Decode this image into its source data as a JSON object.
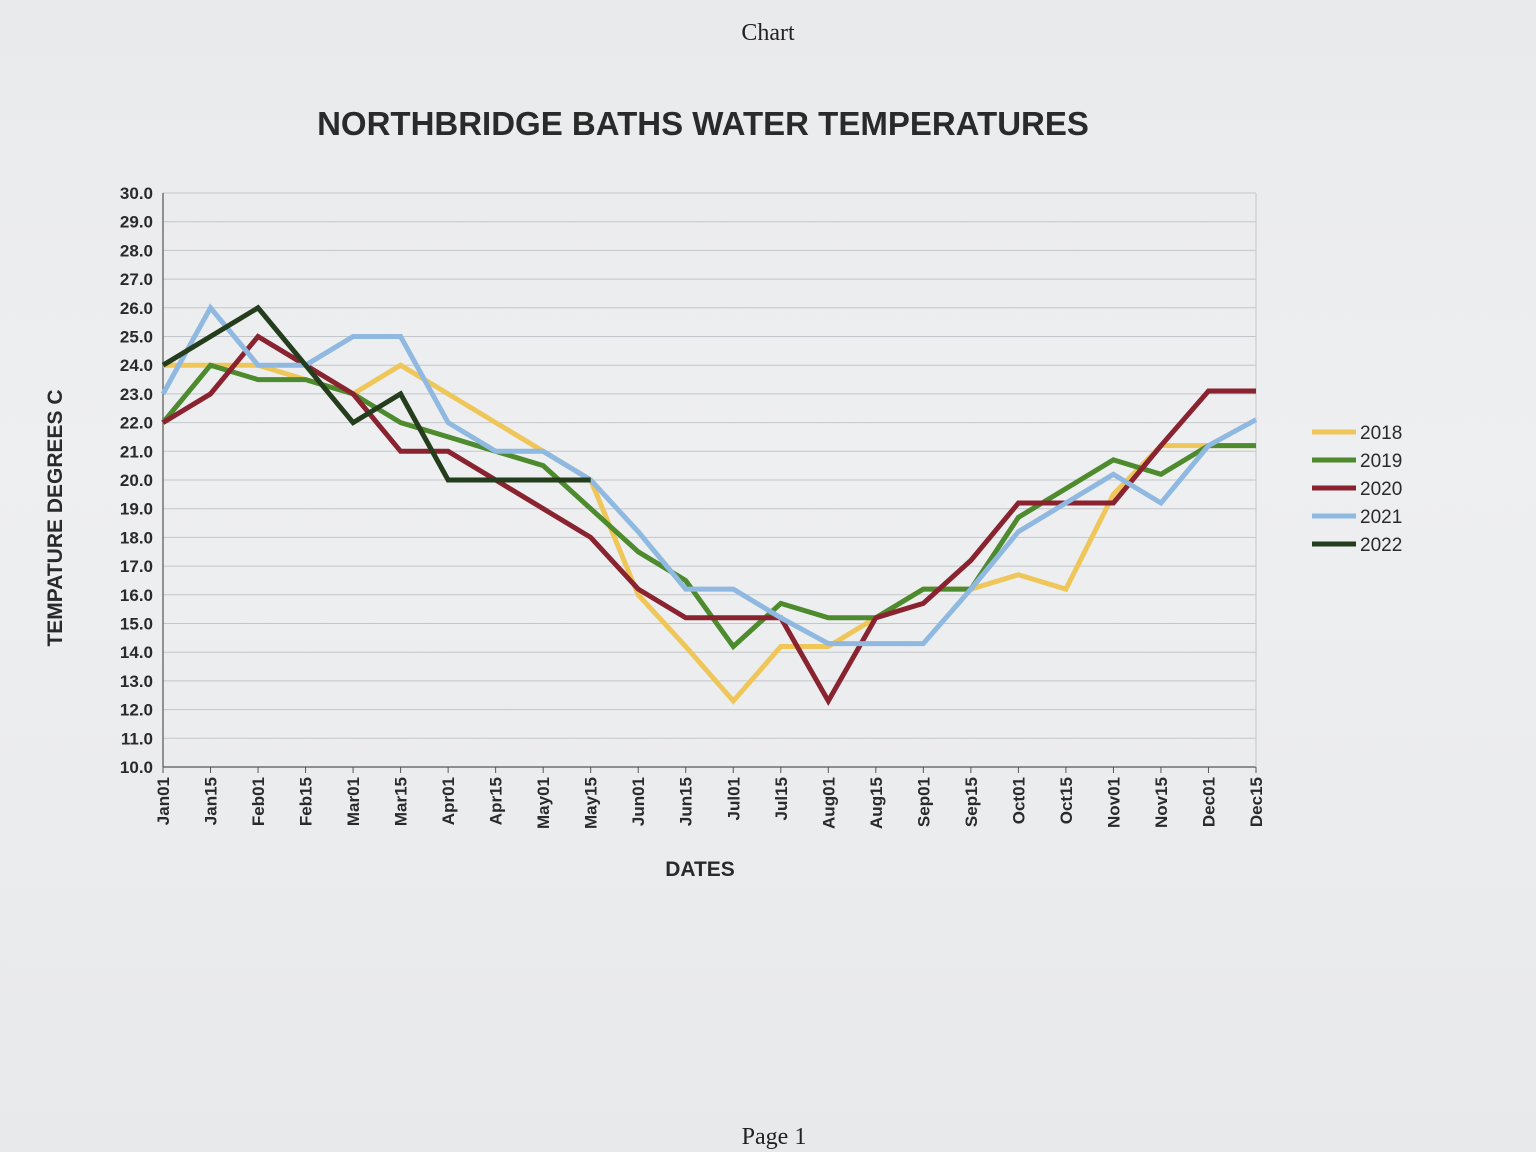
{
  "page": {
    "header": "Chart",
    "footer": "Page 1"
  },
  "colors": {
    "2018": "#efc65a",
    "2019": "#4e8a2e",
    "2020": "#8a2330",
    "2021": "#8fb9e0",
    "2022": "#243d1c",
    "grid": "#c3c6cb",
    "axis": "#555555"
  },
  "chart_data": {
    "type": "line",
    "title": "NORTHBRIDGE BATHS WATER TEMPERATURES",
    "xlabel": "DATES",
    "ylabel": "TEMPATURE DEGREES C",
    "ylim": [
      10,
      30
    ],
    "ystep": 1,
    "yticks": [
      "10.0",
      "11.0",
      "12.0",
      "13.0",
      "14.0",
      "15.0",
      "16.0",
      "17.0",
      "18.0",
      "19.0",
      "20.0",
      "21.0",
      "22.0",
      "23.0",
      "24.0",
      "25.0",
      "26.0",
      "27.0",
      "28.0",
      "29.0",
      "30.0"
    ],
    "grid": true,
    "legend_position": "right",
    "categories": [
      "Jan01",
      "Jan15",
      "Feb01",
      "Feb15",
      "Mar01",
      "Mar15",
      "Apr01",
      "Apr15",
      "May01",
      "May15",
      "Jun01",
      "Jun15",
      "Jul01",
      "Jul15",
      "Aug01",
      "Aug15",
      "Sep01",
      "Sep15",
      "Oct01",
      "Oct15",
      "Nov01",
      "Nov15",
      "Dec01",
      "Dec15"
    ],
    "series": [
      {
        "name": "2018",
        "color_key": "2018",
        "values": [
          24,
          24,
          24,
          23.5,
          23,
          24,
          23,
          22,
          21,
          20,
          16,
          14.2,
          12.3,
          14.2,
          14.2,
          15.2,
          16.2,
          16.2,
          16.7,
          16.2,
          19.5,
          21.2,
          21.2,
          21.2
        ]
      },
      {
        "name": "2019",
        "color_key": "2019",
        "values": [
          22,
          24,
          23.5,
          23.5,
          23,
          22,
          21.5,
          21,
          20.5,
          19,
          17.5,
          16.5,
          14.2,
          15.7,
          15.2,
          15.2,
          16.2,
          16.2,
          18.7,
          19.7,
          20.7,
          20.2,
          21.2,
          21.2
        ]
      },
      {
        "name": "2020",
        "color_key": "2020",
        "values": [
          22,
          23,
          25,
          24,
          23,
          21,
          21,
          20,
          19,
          18,
          16.2,
          15.2,
          15.2,
          15.2,
          12.3,
          15.2,
          15.7,
          17.2,
          19.2,
          19.2,
          19.2,
          21.2,
          23.1,
          23.1
        ]
      },
      {
        "name": "2021",
        "color_key": "2021",
        "values": [
          23,
          26,
          24,
          24,
          25,
          25,
          22,
          21,
          21,
          20,
          18.2,
          16.2,
          16.2,
          15.2,
          14.3,
          14.3,
          14.3,
          16.2,
          18.2,
          19.2,
          20.2,
          19.2,
          21.2,
          22.1
        ]
      },
      {
        "name": "2022",
        "color_key": "2022",
        "values": [
          24,
          25,
          26,
          24,
          22,
          23,
          20,
          20,
          20,
          20,
          null,
          null,
          null,
          null,
          null,
          null,
          null,
          null,
          null,
          null,
          null,
          null,
          null,
          null
        ]
      }
    ]
  }
}
